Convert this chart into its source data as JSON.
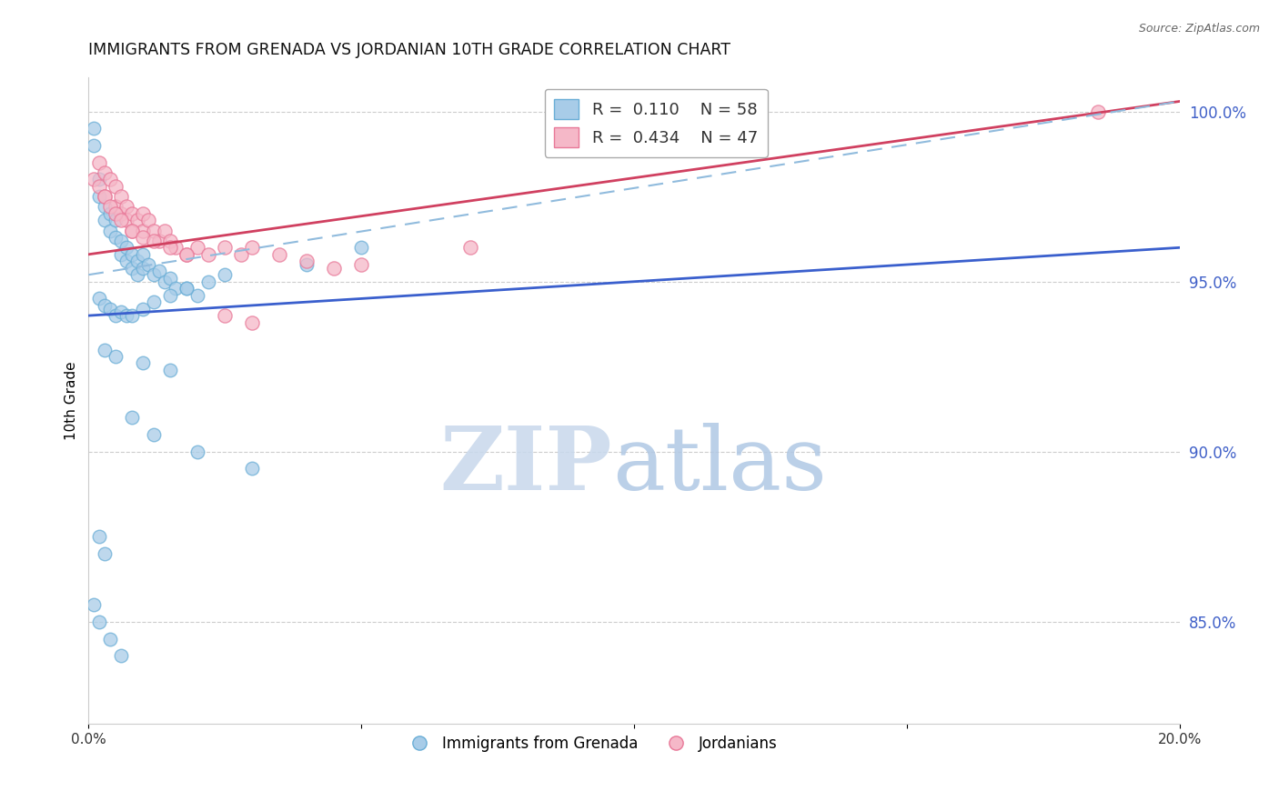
{
  "title": "IMMIGRANTS FROM GRENADA VS JORDANIAN 10TH GRADE CORRELATION CHART",
  "source": "Source: ZipAtlas.com",
  "ylabel": "10th Grade",
  "watermark_zip": "ZIP",
  "watermark_atlas": "atlas",
  "xlim": [
    0.0,
    0.2
  ],
  "ylim": [
    0.82,
    1.01
  ],
  "xticks": [
    0.0,
    0.05,
    0.1,
    0.15,
    0.2
  ],
  "xticklabels": [
    "0.0%",
    "",
    "",
    "",
    "20.0%"
  ],
  "yticks_right": [
    0.85,
    0.9,
    0.95,
    1.0
  ],
  "ytick_right_labels": [
    "85.0%",
    "90.0%",
    "95.0%",
    "100.0%"
  ],
  "series1_label": "Immigrants from Grenada",
  "series1_R": "0.110",
  "series1_N": "58",
  "series1_color": "#a8cce8",
  "series1_edge": "#6aaed6",
  "series2_label": "Jordanians",
  "series2_R": "0.434",
  "series2_N": "47",
  "series2_color": "#f5b8c8",
  "series2_edge": "#e87898",
  "trend1_color": "#3a5fcd",
  "trend2_color": "#d04060",
  "trend_dashed_color": "#90bbdd",
  "background_color": "#ffffff",
  "grid_color": "#cccccc",
  "right_axis_color": "#4060c8",
  "title_fontsize": 12.5,
  "blue_trend_x0": 0.0,
  "blue_trend_y0": 0.94,
  "blue_trend_x1": 0.2,
  "blue_trend_y1": 0.96,
  "pink_trend_x0": 0.0,
  "pink_trend_y0": 0.958,
  "pink_trend_x1": 0.2,
  "pink_trend_y1": 1.003,
  "dash_trend_x0": 0.0,
  "dash_trend_y0": 0.952,
  "dash_trend_x1": 0.2,
  "dash_trend_y1": 1.003,
  "blue_scatter_x": [
    0.001,
    0.001,
    0.002,
    0.002,
    0.003,
    0.003,
    0.004,
    0.004,
    0.005,
    0.005,
    0.006,
    0.006,
    0.007,
    0.007,
    0.008,
    0.008,
    0.009,
    0.009,
    0.01,
    0.01,
    0.011,
    0.012,
    0.013,
    0.014,
    0.015,
    0.016,
    0.018,
    0.02,
    0.002,
    0.003,
    0.004,
    0.005,
    0.006,
    0.007,
    0.008,
    0.01,
    0.012,
    0.015,
    0.018,
    0.022,
    0.025,
    0.003,
    0.005,
    0.01,
    0.015,
    0.008,
    0.012,
    0.02,
    0.03,
    0.002,
    0.003,
    0.001,
    0.002,
    0.004,
    0.006,
    0.05,
    0.04
  ],
  "blue_scatter_y": [
    0.995,
    0.99,
    0.98,
    0.975,
    0.972,
    0.968,
    0.97,
    0.965,
    0.968,
    0.963,
    0.962,
    0.958,
    0.96,
    0.956,
    0.958,
    0.954,
    0.956,
    0.952,
    0.958,
    0.954,
    0.955,
    0.952,
    0.953,
    0.95,
    0.951,
    0.948,
    0.948,
    0.946,
    0.945,
    0.943,
    0.942,
    0.94,
    0.941,
    0.94,
    0.94,
    0.942,
    0.944,
    0.946,
    0.948,
    0.95,
    0.952,
    0.93,
    0.928,
    0.926,
    0.924,
    0.91,
    0.905,
    0.9,
    0.895,
    0.875,
    0.87,
    0.855,
    0.85,
    0.845,
    0.84,
    0.96,
    0.955
  ],
  "pink_scatter_x": [
    0.001,
    0.002,
    0.002,
    0.003,
    0.003,
    0.004,
    0.005,
    0.005,
    0.006,
    0.006,
    0.007,
    0.007,
    0.008,
    0.008,
    0.009,
    0.01,
    0.01,
    0.011,
    0.012,
    0.013,
    0.014,
    0.015,
    0.016,
    0.018,
    0.02,
    0.022,
    0.025,
    0.028,
    0.003,
    0.004,
    0.005,
    0.006,
    0.008,
    0.01,
    0.012,
    0.015,
    0.018,
    0.03,
    0.035,
    0.04,
    0.045,
    0.05,
    0.07,
    0.025,
    0.03,
    0.185
  ],
  "pink_scatter_y": [
    0.98,
    0.985,
    0.978,
    0.982,
    0.975,
    0.98,
    0.978,
    0.972,
    0.975,
    0.97,
    0.972,
    0.968,
    0.97,
    0.965,
    0.968,
    0.97,
    0.965,
    0.968,
    0.965,
    0.962,
    0.965,
    0.962,
    0.96,
    0.958,
    0.96,
    0.958,
    0.96,
    0.958,
    0.975,
    0.972,
    0.97,
    0.968,
    0.965,
    0.963,
    0.962,
    0.96,
    0.958,
    0.96,
    0.958,
    0.956,
    0.954,
    0.955,
    0.96,
    0.94,
    0.938,
    1.0
  ]
}
